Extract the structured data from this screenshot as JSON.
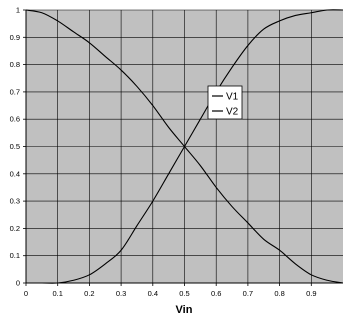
{
  "chart_data": {
    "type": "line",
    "title": "",
    "xlabel": "Vin",
    "ylabel": "",
    "xlim": [
      0,
      1
    ],
    "ylim": [
      0,
      1
    ],
    "x_ticks": [
      "0",
      "0.1",
      "0.2",
      "0.3",
      "0.4",
      "0.5",
      "0.6",
      "0.7",
      "0.8",
      "0.9"
    ],
    "y_ticks": [
      "0",
      "0.1",
      "0.2",
      "0.3",
      "0.4",
      "0.5",
      "0.6",
      "0.7",
      "0.8",
      "0.9",
      "1"
    ],
    "grid": true,
    "legend_position": "center-right",
    "plot_background": "#c0c0c0",
    "line_color": "#000000",
    "x": [
      0,
      0.05,
      0.1,
      0.15,
      0.2,
      0.25,
      0.3,
      0.35,
      0.4,
      0.45,
      0.5,
      0.55,
      0.6,
      0.65,
      0.7,
      0.75,
      0.8,
      0.85,
      0.9,
      0.95,
      1.0
    ],
    "series": [
      {
        "name": "V1",
        "values": [
          1.0,
          0.99,
          0.96,
          0.92,
          0.88,
          0.83,
          0.78,
          0.72,
          0.65,
          0.57,
          0.5,
          0.43,
          0.35,
          0.28,
          0.22,
          0.16,
          0.12,
          0.07,
          0.03,
          0.01,
          0.0
        ]
      },
      {
        "name": "V2",
        "values": [
          0.0,
          0.0,
          0.0,
          0.01,
          0.03,
          0.07,
          0.12,
          0.21,
          0.3,
          0.4,
          0.5,
          0.6,
          0.7,
          0.79,
          0.87,
          0.93,
          0.96,
          0.98,
          0.99,
          1.0,
          1.0
        ]
      }
    ]
  }
}
